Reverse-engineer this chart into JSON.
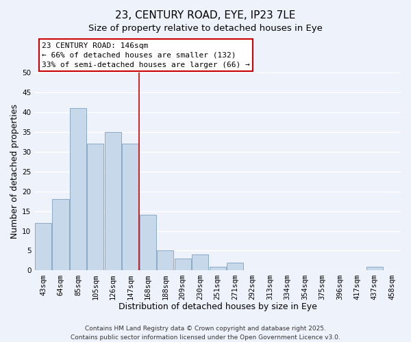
{
  "title": "23, CENTURY ROAD, EYE, IP23 7LE",
  "subtitle": "Size of property relative to detached houses in Eye",
  "xlabel": "Distribution of detached houses by size in Eye",
  "ylabel": "Number of detached properties",
  "categories": [
    "43sqm",
    "64sqm",
    "85sqm",
    "105sqm",
    "126sqm",
    "147sqm",
    "168sqm",
    "188sqm",
    "209sqm",
    "230sqm",
    "251sqm",
    "271sqm",
    "292sqm",
    "313sqm",
    "334sqm",
    "354sqm",
    "375sqm",
    "396sqm",
    "417sqm",
    "437sqm",
    "458sqm"
  ],
  "values": [
    12,
    18,
    41,
    32,
    35,
    32,
    14,
    5,
    3,
    4,
    1,
    2,
    0,
    0,
    0,
    0,
    0,
    0,
    0,
    1,
    0
  ],
  "bar_color": "#c8d8eb",
  "bar_edge_color": "#8aaac8",
  "property_line_x": 5.5,
  "property_label": "23 CENTURY ROAD: 146sqm",
  "annotation_line1": "← 66% of detached houses are smaller (132)",
  "annotation_line2": "33% of semi-detached houses are larger (66) →",
  "annotation_box_color": "#ffffff",
  "annotation_box_edge": "#cc0000",
  "property_line_color": "#cc0000",
  "ylim": [
    0,
    50
  ],
  "yticks": [
    0,
    5,
    10,
    15,
    20,
    25,
    30,
    35,
    40,
    45,
    50
  ],
  "background_color": "#eef2fa",
  "grid_color": "#ffffff",
  "footer_line1": "Contains HM Land Registry data © Crown copyright and database right 2025.",
  "footer_line2": "Contains public sector information licensed under the Open Government Licence v3.0.",
  "title_fontsize": 11,
  "subtitle_fontsize": 9.5,
  "axis_label_fontsize": 9,
  "tick_fontsize": 7.5,
  "footer_fontsize": 6.5
}
